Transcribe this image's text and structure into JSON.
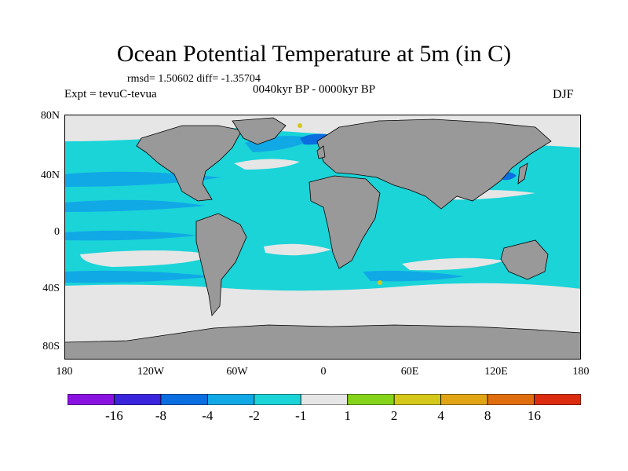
{
  "title": "Ocean Potential Temperature at 5m (in C)",
  "stats": "rmsd= 1.50602 diff= -1.35704",
  "experiment": "Expt = tevuC-tevua",
  "period": "0040kyr BP - 0000kyr BP",
  "season": "DJF",
  "y_ticks": [
    "80N",
    "40N",
    "0",
    "40S",
    "80S"
  ],
  "x_ticks": [
    "180",
    "120W",
    "60W",
    "0",
    "60E",
    "120E",
    "180"
  ],
  "colorbar": {
    "labels": [
      "-16",
      "-8",
      "-4",
      "-2",
      "-1",
      "1",
      "2",
      "4",
      "8",
      "16"
    ],
    "colors": [
      "#8a12e0",
      "#3a24dc",
      "#0a6ee0",
      "#11a8e6",
      "#1ad4d8",
      "#e6e6e6",
      "#86d41a",
      "#d4c81a",
      "#e0a414",
      "#e06e0e",
      "#dc2c10"
    ]
  },
  "map_colors": {
    "land": "#999999",
    "ocean_default": "#1ad4d8",
    "near_zero": "#e6e6e6",
    "cool": "#11a8e6",
    "strong_cool": "#0a6ee0",
    "warm": "#d4c81a"
  }
}
